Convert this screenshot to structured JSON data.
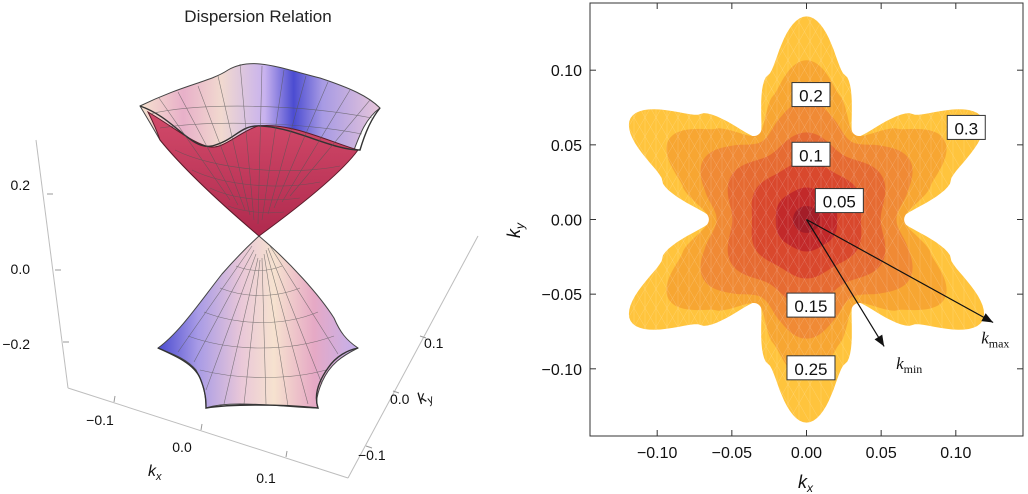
{
  "chart_data": [
    {
      "type": "surface3d",
      "title": "Dispersion Relation",
      "x_axis": {
        "label": "k",
        "label_sub": "x",
        "ticks": [
          "−0.1",
          "0.0",
          "0.1"
        ]
      },
      "y_axis": {
        "label": "k",
        "label_sub": "y",
        "ticks": [
          "−0.1",
          "0.0",
          "0.1"
        ]
      },
      "z_axis": {
        "ticks": [
          "0.2",
          "0.0",
          "−0.2"
        ]
      },
      "description_of_surfaces": [
        "upper cone",
        "lower cone"
      ],
      "colors": {
        "light": "#f3dccb",
        "pink": "#e6a3bf",
        "violet": "#b6a2ea",
        "blue": "#4c4ed2",
        "inner": "#c0395a"
      }
    },
    {
      "type": "contour",
      "x_axis": {
        "label": "k",
        "label_sub": "x",
        "range": [
          -0.145,
          0.145
        ],
        "ticks": [
          {
            "v": -0.1,
            "t": "−0.10"
          },
          {
            "v": -0.05,
            "t": "−0.05"
          },
          {
            "v": 0.0,
            "t": "0.00"
          },
          {
            "v": 0.05,
            "t": "0.05"
          },
          {
            "v": 0.1,
            "t": "0.10"
          }
        ]
      },
      "y_axis": {
        "label": "k",
        "label_sub": "y",
        "range": [
          -0.145,
          0.145
        ],
        "ticks": [
          {
            "v": 0.1,
            "t": "0.10"
          },
          {
            "v": 0.05,
            "t": "0.05"
          },
          {
            "v": 0.0,
            "t": "0.00"
          },
          {
            "v": -0.05,
            "t": "−0.05"
          },
          {
            "v": -0.1,
            "t": "−0.10"
          }
        ]
      },
      "levels": [
        0.05,
        0.1,
        0.15,
        0.2,
        0.25,
        0.3
      ],
      "contour_labels": [
        {
          "text": "0.2",
          "x": 0.003,
          "y": 0.083
        },
        {
          "text": "0.3",
          "x": 0.107,
          "y": 0.061
        },
        {
          "text": "0.1",
          "x": 0.003,
          "y": 0.043
        },
        {
          "text": "0.05",
          "x": 0.022,
          "y": 0.012
        },
        {
          "text": "0.15",
          "x": 0.003,
          "y": -0.058
        },
        {
          "text": "0.25",
          "x": 0.003,
          "y": -0.1
        }
      ],
      "arrows": [
        {
          "label": "min",
          "symbol": "k",
          "from": [
            0.0,
            0.0
          ],
          "to": [
            0.052,
            -0.085
          ],
          "label_at": [
            0.06,
            -0.1
          ]
        },
        {
          "label": "max",
          "symbol": "k",
          "from": [
            0.0,
            0.0
          ],
          "to": [
            0.125,
            -0.069
          ],
          "label_at": [
            0.117,
            -0.083
          ]
        }
      ],
      "colors": [
        "#ffc43d",
        "#f7a632",
        "#f08a35",
        "#e66b32",
        "#d9482d",
        "#c2292a",
        "#a41d28"
      ]
    }
  ]
}
